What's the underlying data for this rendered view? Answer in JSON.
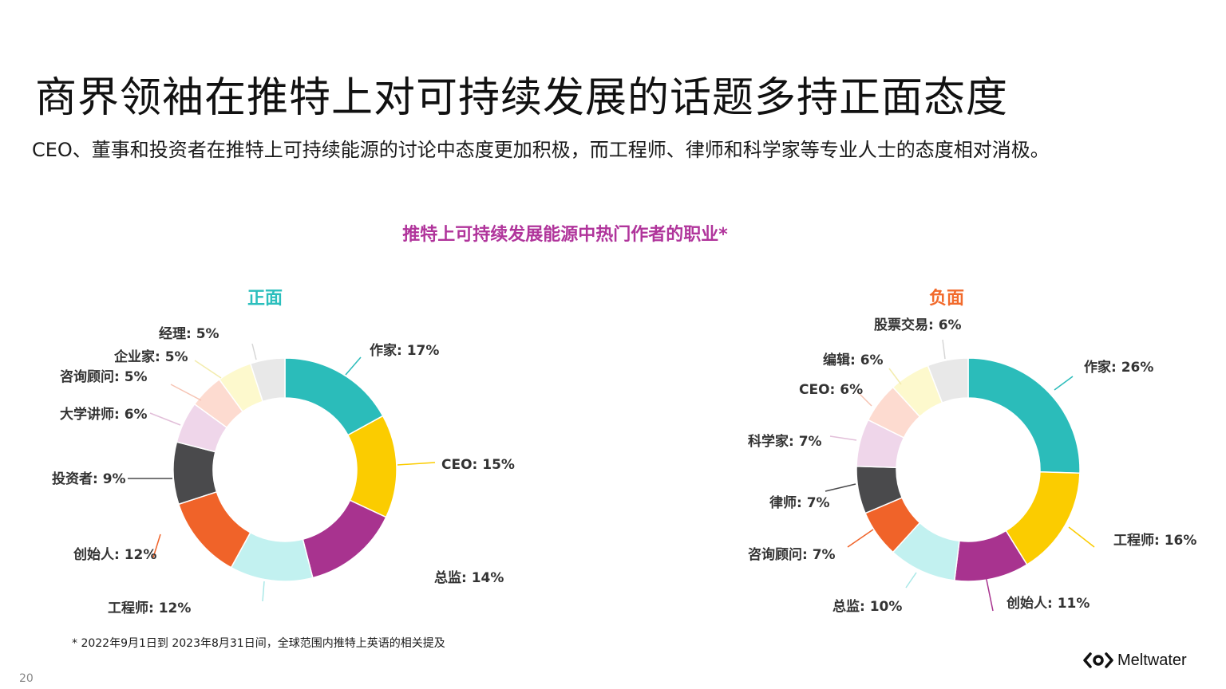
{
  "title": "商界领袖在推特上对可持续发展的话题多持正面态度",
  "subtitle": "CEO、董事和投资者在推特上可持续能源的讨论中态度更加积极，而工程师、律师和科学家等专业人士的态度相对消极。",
  "footnote": "* 2022年9月1日到 2023年8月31日间，全球范围内推特上英语的相关提及",
  "page_number": "20",
  "brand": "Meltwater",
  "colors": {
    "chart_title": "#b0349b",
    "positive_title": "#2bbfbd",
    "negative_title": "#f26a2b"
  },
  "chart_data": {
    "type": "donut",
    "title": "推特上可持续发展能源中热门作者的职业*",
    "charts": [
      {
        "name": "正面",
        "slices": [
          {
            "label": "作家",
            "value": 17,
            "display": "作家: 17%",
            "color": "#2bbcba"
          },
          {
            "label": "CEO",
            "value": 15,
            "display": "CEO: 15%",
            "color": "#fbcc00"
          },
          {
            "label": "总监",
            "value": 14,
            "display": "总监: 14%",
            "color": "#a8338f"
          },
          {
            "label": "工程师",
            "value": 12,
            "display": "工程师: 12%",
            "color": "#c2f1f0"
          },
          {
            "label": "创始人",
            "value": 12,
            "display": "创始人: 12%",
            "color": "#f06329"
          },
          {
            "label": "投资者",
            "value": 9,
            "display": "投资者: 9%",
            "color": "#4a4a4c"
          },
          {
            "label": "大学讲师",
            "value": 6,
            "display": "大学讲师: 6%",
            "color": "#efd6ea"
          },
          {
            "label": "咨询顾问",
            "value": 5,
            "display": "咨询顾问: 5%",
            "color": "#fddbd0"
          },
          {
            "label": "企业家",
            "value": 5,
            "display": "企业家: 5%",
            "color": "#fdf9cd"
          },
          {
            "label": "经理",
            "value": 5,
            "display": "经理: 5%",
            "color": "#e8e8e8"
          }
        ]
      },
      {
        "name": "负面",
        "slices": [
          {
            "label": "作家",
            "value": 26,
            "display": "作家: 26%",
            "color": "#2bbcba"
          },
          {
            "label": "工程师",
            "value": 16,
            "display": "工程师: 16%",
            "color": "#fbcc00"
          },
          {
            "label": "创始人",
            "value": 11,
            "display": "创始人: 11%",
            "color": "#a8338f"
          },
          {
            "label": "总监",
            "value": 10,
            "display": "总监: 10%",
            "color": "#c2f1f0"
          },
          {
            "label": "咨询顾问",
            "value": 7,
            "display": "咨询顾问: 7%",
            "color": "#f06329"
          },
          {
            "label": "律师",
            "value": 7,
            "display": "律师: 7%",
            "color": "#4a4a4c"
          },
          {
            "label": "科学家",
            "value": 7,
            "display": "科学家: 7%",
            "color": "#efd6ea"
          },
          {
            "label": "CEO",
            "value": 6,
            "display": "CEO: 6%",
            "color": "#fddbd0"
          },
          {
            "label": "编辑",
            "value": 6,
            "display": "编辑: 6%",
            "color": "#fdf9cd"
          },
          {
            "label": "股票交易",
            "value": 6,
            "display": "股票交易: 6%",
            "color": "#e8e8e8"
          }
        ]
      }
    ]
  }
}
